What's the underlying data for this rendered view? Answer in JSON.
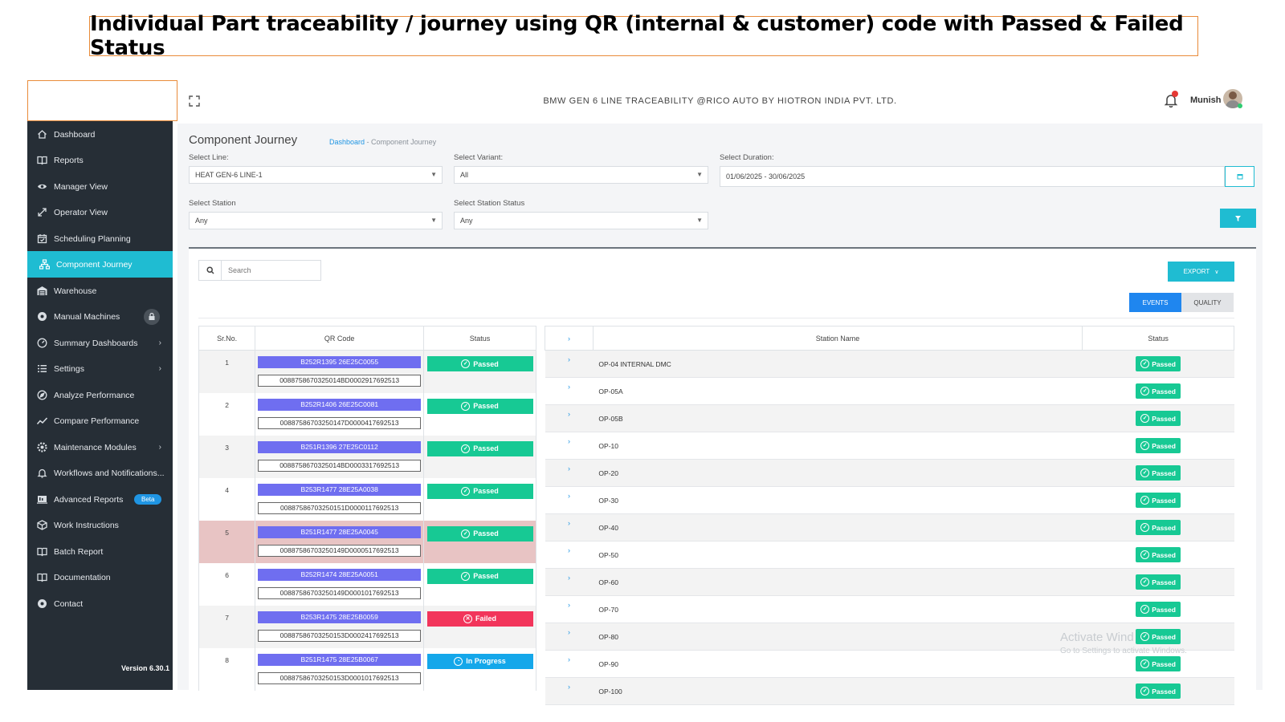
{
  "banner": "Individual Part traceability / journey using QR (internal & customer) code with Passed & Failed Status",
  "topbar": {
    "app_title": "BMW GEN 6 LINE TRACEABILITY @RICO AUTO BY HIOTRON INDIA PVT. LTD.",
    "user_name": "Munish"
  },
  "sidebar": {
    "items": [
      {
        "label": "Dashboard",
        "icon": "home-icon"
      },
      {
        "label": "Reports",
        "icon": "book-icon"
      },
      {
        "label": "Manager View",
        "icon": "eye-icon"
      },
      {
        "label": "Operator View",
        "icon": "expand-arrows-icon"
      },
      {
        "label": "Scheduling Planning",
        "icon": "calendar-check-icon"
      },
      {
        "label": "Component Journey",
        "icon": "network-icon"
      },
      {
        "label": "Warehouse",
        "icon": "warehouse-icon"
      },
      {
        "label": "Manual Machines",
        "icon": "gear-icon"
      },
      {
        "label": "Summary Dashboards",
        "icon": "gauge-icon"
      },
      {
        "label": "Settings",
        "icon": "list-icon"
      },
      {
        "label": "Analyze Performance",
        "icon": "compass-icon"
      },
      {
        "label": "Compare Performance",
        "icon": "trend-icon"
      },
      {
        "label": "Maintenance Modules",
        "icon": "cog-icon"
      },
      {
        "label": "Workflows and Notifications...",
        "icon": "bell-icon"
      },
      {
        "label": "Advanced Reports",
        "icon": "report-icon"
      },
      {
        "label": "Work Instructions",
        "icon": "box-icon"
      },
      {
        "label": "Batch Report",
        "icon": "book-icon"
      },
      {
        "label": "Documentation",
        "icon": "book-icon"
      },
      {
        "label": "Contact",
        "icon": "gear-icon"
      }
    ],
    "beta_label": "Beta",
    "version": "Version 6.30.1"
  },
  "page": {
    "title": "Component Journey",
    "breadcrumb_home": "Dashboard",
    "breadcrumb_current": "- Component Journey"
  },
  "filters": {
    "line_label": "Select Line:",
    "line_value": "HEAT GEN-6 LINE-1",
    "variant_label": "Select Variant:",
    "variant_value": "All",
    "duration_label": "Select Duration:",
    "duration_value": "01/06/2025 - 30/06/2025",
    "station_label": "Select Station",
    "station_value": "Any",
    "station_status_label": "Select Station Status",
    "station_status_value": "Any"
  },
  "toolbar": {
    "search_placeholder": "Search",
    "export_label": "EXPORT",
    "events_label": "EVENTS",
    "quality_label": "QUALITY"
  },
  "left_table": {
    "headers": [
      "Sr.No.",
      "QR Code",
      "Status"
    ],
    "rows": [
      {
        "sr": "1",
        "qr": "B252R1395 26E25C0055",
        "customer": "0088758670325014BD0002917692513",
        "status": "Passed",
        "kind": "passed"
      },
      {
        "sr": "2",
        "qr": "B252R1406 26E25C0081",
        "customer": "00887586703250147D0000417692513",
        "status": "Passed",
        "kind": "passed"
      },
      {
        "sr": "3",
        "qr": "B251R1396 27E25C0112",
        "customer": "0088758670325014BD0003317692513",
        "status": "Passed",
        "kind": "passed"
      },
      {
        "sr": "4",
        "qr": "B253R1477 28E25A0038",
        "customer": "00887586703250151D0000117692513",
        "status": "Passed",
        "kind": "passed"
      },
      {
        "sr": "5",
        "qr": "B251R1477 28E25A0045",
        "customer": "00887586703250149D0000517692513",
        "status": "Passed",
        "kind": "passed"
      },
      {
        "sr": "6",
        "qr": "B252R1474 28E25A0051",
        "customer": "00887586703250149D0001017692513",
        "status": "Passed",
        "kind": "passed"
      },
      {
        "sr": "7",
        "qr": "B253R1475 28E25B0059",
        "customer": "00887586703250153D0002417692513",
        "status": "Failed",
        "kind": "failed"
      },
      {
        "sr": "8",
        "qr": "B251R1475 28E25B0067",
        "customer": "00887586703250153D0001017692513",
        "status": "In Progress",
        "kind": "progress"
      }
    ]
  },
  "right_table": {
    "headers": [
      "Station Name",
      "Status"
    ],
    "rows": [
      {
        "station": "OP-04 INTERNAL DMC",
        "status": "Passed"
      },
      {
        "station": "OP-05A",
        "status": "Passed"
      },
      {
        "station": "OP-05B",
        "status": "Passed"
      },
      {
        "station": "OP-10",
        "status": "Passed"
      },
      {
        "station": "OP-20",
        "status": "Passed"
      },
      {
        "station": "OP-30",
        "status": "Passed"
      },
      {
        "station": "OP-40",
        "status": "Passed"
      },
      {
        "station": "OP-50",
        "status": "Passed"
      },
      {
        "station": "OP-60",
        "status": "Passed"
      },
      {
        "station": "OP-70",
        "status": "Passed"
      },
      {
        "station": "OP-80",
        "status": "Passed"
      },
      {
        "station": "OP-90",
        "status": "Passed"
      },
      {
        "station": "OP-100",
        "status": "Passed"
      }
    ]
  },
  "watermark": {
    "line1": "Activate Wind",
    "line2": "Go to Settings to activate Windows."
  },
  "colors": {
    "accent": "#1fbcd2",
    "sidebar": "#262e36",
    "passed": "#17c994",
    "failed": "#f2355b",
    "in_progress": "#14a7ea",
    "qr_internal": "#6f6ef0",
    "highlight_row": "#e8c4c4",
    "banner_border": "#e98b3a"
  }
}
